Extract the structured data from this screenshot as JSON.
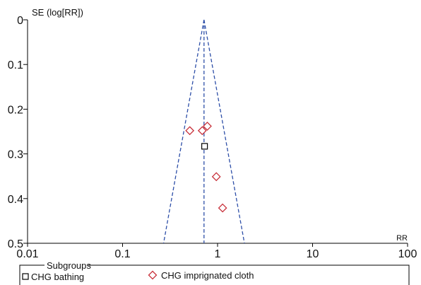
{
  "chart_data": {
    "type": "scatter",
    "title": "",
    "xlabel": "RR",
    "ylabel": "SE (log[RR])",
    "x_scale": "log",
    "x_range": [
      0.01,
      100
    ],
    "x_ticks": [
      0.01,
      0.1,
      1,
      10,
      100
    ],
    "x_tick_labels": [
      "0.01",
      "0.1",
      "1",
      "10",
      "100"
    ],
    "y_range": [
      0,
      0.5
    ],
    "y_inverted": true,
    "y_ticks": [
      0,
      0.1,
      0.2,
      0.3,
      0.4,
      0.5
    ],
    "y_tick_labels": [
      "0",
      "0.1",
      "0.2",
      "0.3",
      "0.4",
      "0.5"
    ],
    "pooled_rr": 0.72,
    "funnel_se_max": 0.5,
    "grid": false,
    "series": [
      {
        "name": "CHG bathing",
        "marker": "square",
        "color": "#000000",
        "points": [
          {
            "x": 0.73,
            "y": 0.283
          }
        ]
      },
      {
        "name": "CHG imprignated cloth",
        "marker": "diamond",
        "color": "#c8323c",
        "points": [
          {
            "x": 0.51,
            "y": 0.248
          },
          {
            "x": 0.69,
            "y": 0.248
          },
          {
            "x": 0.78,
            "y": 0.238
          },
          {
            "x": 0.97,
            "y": 0.351
          },
          {
            "x": 1.13,
            "y": 0.421
          }
        ]
      }
    ],
    "legend": {
      "title": "Subgroups",
      "position": "bottom",
      "items": [
        "CHG bathing",
        "CHG imprignated cloth"
      ]
    },
    "colors": {
      "funnel_line": "#2e4fa8",
      "axis": "#000000"
    }
  }
}
